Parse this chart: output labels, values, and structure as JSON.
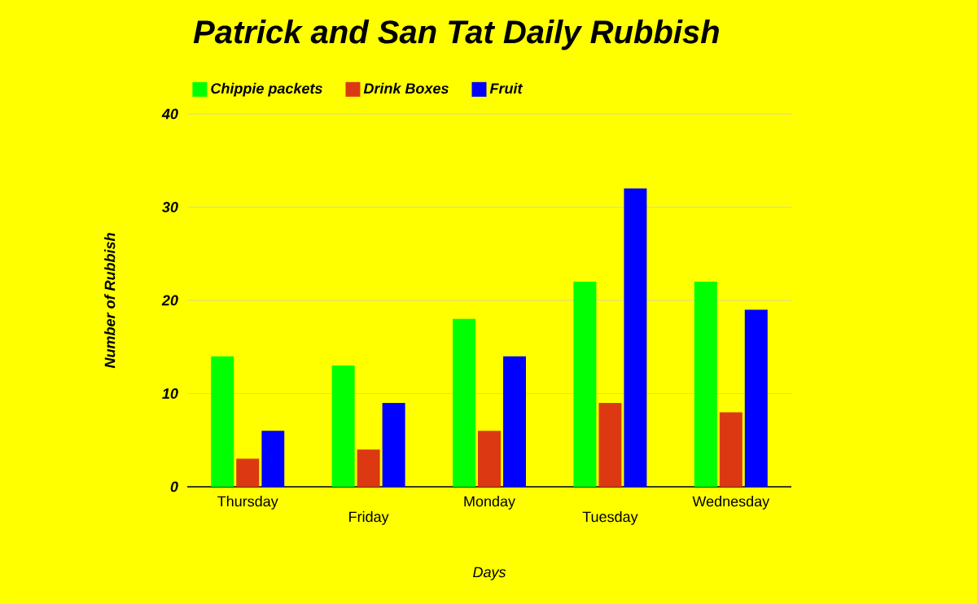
{
  "chart_data": {
    "type": "bar",
    "title": "Patrick and San Tat Daily Rubbish",
    "xlabel": "Days",
    "ylabel": "Number of Rubbish",
    "categories": [
      "Thursday",
      "Friday",
      "Monday",
      "Tuesday",
      "Wednesday"
    ],
    "series": [
      {
        "name": "Chippie packets",
        "color": "#00ff00",
        "values": [
          14,
          13,
          18,
          22,
          22
        ]
      },
      {
        "name": "Drink Boxes",
        "color": "#dc3912",
        "values": [
          3,
          4,
          6,
          9,
          8
        ]
      },
      {
        "name": "Fruit",
        "color": "#0000ff",
        "values": [
          6,
          9,
          14,
          32,
          19
        ]
      }
    ],
    "ylim": [
      0,
      40
    ],
    "yticks": [
      0,
      10,
      20,
      30,
      40
    ],
    "grid": "y",
    "legend": "top left"
  }
}
